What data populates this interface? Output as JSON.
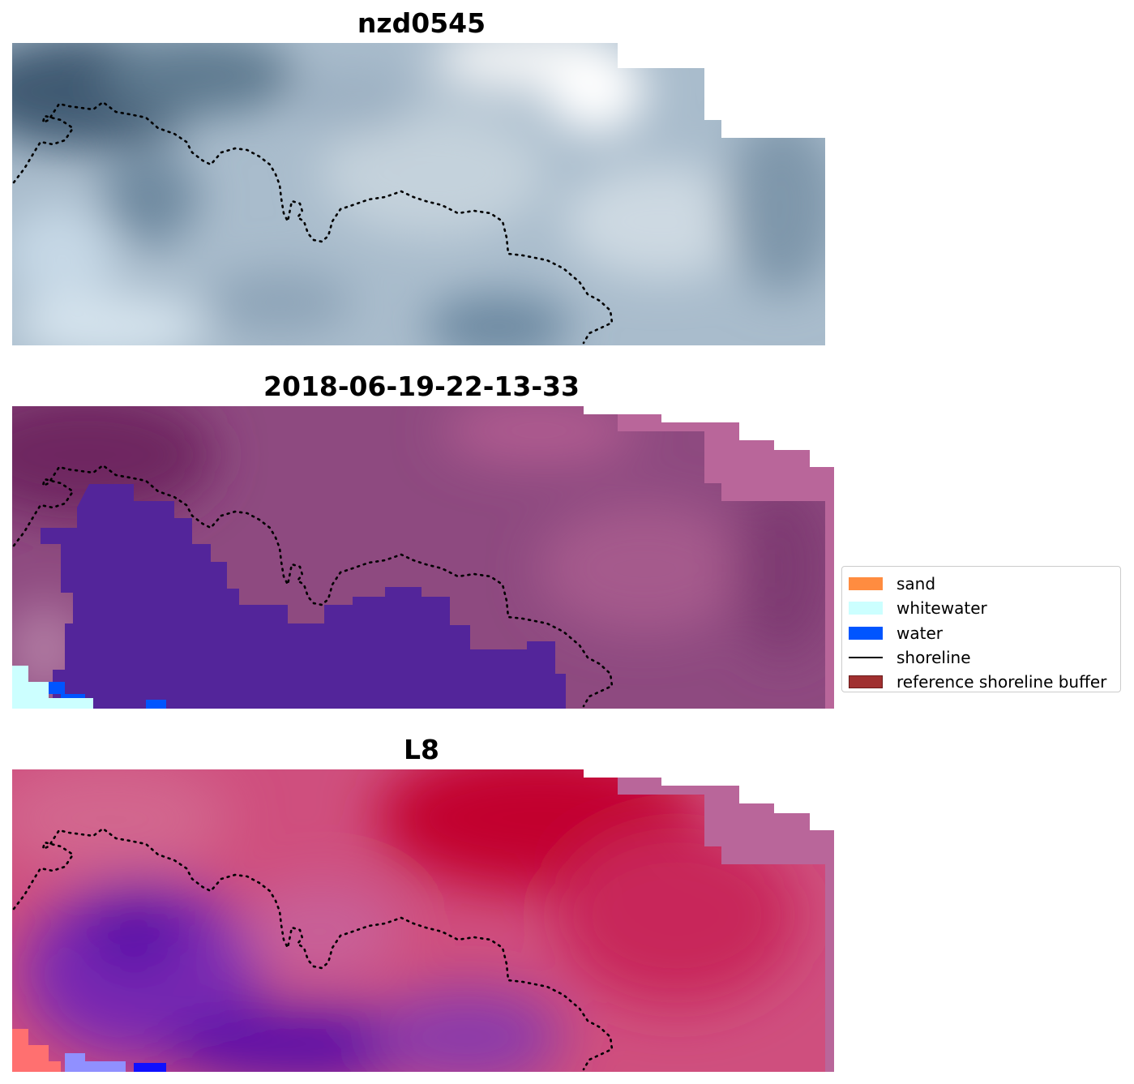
{
  "panels": [
    {
      "title": "nzd0545",
      "kind": "rgb"
    },
    {
      "title": "2018-06-19-22-13-33",
      "kind": "classified"
    },
    {
      "title": "L8",
      "kind": "index"
    }
  ],
  "legend": {
    "items": [
      {
        "label": "sand",
        "color": "#ff8c40",
        "type": "patch"
      },
      {
        "label": "whitewater",
        "color": "#ccffff",
        "type": "patch"
      },
      {
        "label": "water",
        "color": "#0055ff",
        "type": "patch"
      },
      {
        "label": "shoreline",
        "color": "#000000",
        "type": "line"
      },
      {
        "label": "reference shoreline buffer",
        "color": "#a03030",
        "type": "patch"
      }
    ]
  },
  "colors": {
    "rgb_dark": "#3f5a72",
    "rgb_mid": "#a9bccc",
    "rgb_light": "#f4f6f7",
    "buffer_overlay": "#b9669a",
    "class_land": "#8e4a80",
    "class_water": "#53259a",
    "index_red": "#c2002e",
    "index_pink": "#cf5b88",
    "index_purple": "#5a0aa8"
  }
}
